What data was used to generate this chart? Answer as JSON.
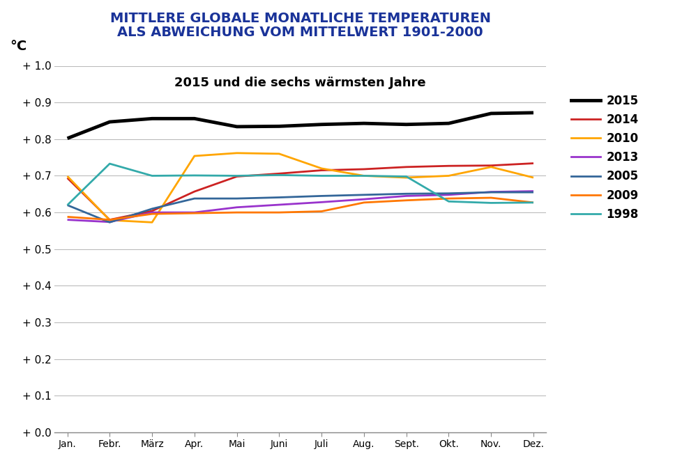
{
  "title_line1": "MITTLERE GLOBALE MONATLICHE TEMPERATUREN",
  "title_line2": "ALS ABWEICHUNG VOM MITTELWERT 1901-2000",
  "subtitle": "2015 und die sechs wärmsten Jahre",
  "ylabel": "°C",
  "months": [
    "Jan.",
    "Febr.",
    "März",
    "Apr.",
    "Mai",
    "Juni",
    "Juli",
    "Aug.",
    "Sept.",
    "Okt.",
    "Nov.",
    "Dez."
  ],
  "ylim": [
    0.0,
    1.0
  ],
  "yticks": [
    0.0,
    0.1,
    0.2,
    0.3,
    0.4,
    0.5,
    0.6,
    0.7,
    0.8,
    0.9,
    1.0
  ],
  "series": {
    "2015": {
      "color": "#000000",
      "linewidth": 3.5,
      "data": [
        0.802,
        0.847,
        0.856,
        0.856,
        0.834,
        0.835,
        0.84,
        0.843,
        0.84,
        0.843,
        0.87,
        0.872
      ]
    },
    "2014": {
      "color": "#cc2222",
      "linewidth": 2.0,
      "data": [
        0.694,
        0.58,
        0.604,
        0.657,
        0.698,
        0.706,
        0.715,
        0.718,
        0.724,
        0.727,
        0.728,
        0.734
      ]
    },
    "2010": {
      "color": "#ffa500",
      "linewidth": 2.0,
      "data": [
        0.699,
        0.579,
        0.573,
        0.754,
        0.762,
        0.76,
        0.72,
        0.7,
        0.695,
        0.7,
        0.724,
        0.695
      ]
    },
    "2013": {
      "color": "#9933cc",
      "linewidth": 2.0,
      "data": [
        0.58,
        0.574,
        0.6,
        0.6,
        0.614,
        0.621,
        0.628,
        0.636,
        0.645,
        0.648,
        0.656,
        0.658
      ]
    },
    "2005": {
      "color": "#336699",
      "linewidth": 2.0,
      "data": [
        0.62,
        0.573,
        0.61,
        0.638,
        0.638,
        0.641,
        0.645,
        0.648,
        0.651,
        0.652,
        0.655,
        0.655
      ]
    },
    "2009": {
      "color": "#ff7700",
      "linewidth": 2.0,
      "data": [
        0.588,
        0.58,
        0.596,
        0.598,
        0.6,
        0.6,
        0.603,
        0.627,
        0.633,
        0.638,
        0.64,
        0.627
      ]
    },
    "1998": {
      "color": "#33aaaa",
      "linewidth": 2.0,
      "data": [
        0.62,
        0.733,
        0.7,
        0.701,
        0.7,
        0.702,
        0.7,
        0.7,
        0.698,
        0.63,
        0.626,
        0.627
      ]
    }
  },
  "legend_order": [
    "2015",
    "2014",
    "2010",
    "2013",
    "2005",
    "2009",
    "1998"
  ],
  "title_color": "#1a3399",
  "background_color": "#ffffff"
}
